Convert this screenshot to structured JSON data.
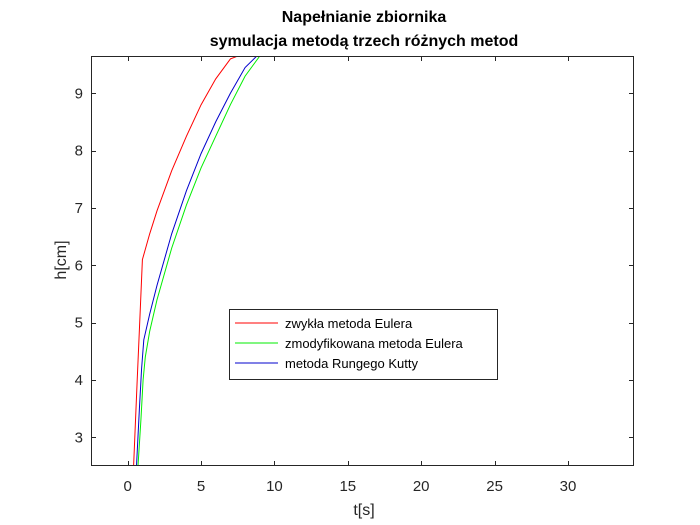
{
  "chart_data": {
    "type": "line",
    "title": [
      "Napełnianie zbiornika",
      "symulacja metodą trzech różnych metod"
    ],
    "xlabel": "t[s]",
    "ylabel": "h[cm]",
    "xlim": [
      -2.5,
      34.5
    ],
    "ylim": [
      2.5,
      9.65
    ],
    "xticks": [
      0,
      5,
      10,
      15,
      20,
      25,
      30
    ],
    "yticks": [
      3,
      4,
      5,
      6,
      7,
      8,
      9
    ],
    "grid": false,
    "legend_position": "center",
    "series": [
      {
        "name": "zwykła metoda Eulera",
        "color": "#ff0000",
        "x": [
          0.4,
          0.65,
          0.85,
          1.0,
          1.5,
          2.0,
          3.0,
          4.0,
          5.0,
          6.0,
          7.0,
          7.5
        ],
        "y": [
          2.5,
          4.0,
          5.2,
          6.1,
          6.55,
          6.95,
          7.65,
          8.25,
          8.8,
          9.25,
          9.6,
          9.65
        ]
      },
      {
        "name": "zmodyfikowana metoda Eulera",
        "color": "#00ee00",
        "x": [
          0.7,
          0.9,
          1.05,
          1.2,
          1.5,
          2.0,
          3.0,
          4.0,
          5.0,
          6.0,
          7.0,
          8.0,
          9.0
        ],
        "y": [
          2.5,
          3.3,
          4.0,
          4.4,
          4.85,
          5.4,
          6.3,
          7.05,
          7.7,
          8.25,
          8.8,
          9.3,
          9.65
        ]
      },
      {
        "name": "metoda Rungego Kutty",
        "color": "#0000cc",
        "x": [
          0.6,
          0.8,
          0.95,
          1.1,
          1.5,
          2.0,
          3.0,
          4.0,
          5.0,
          6.0,
          7.0,
          8.0,
          8.8
        ],
        "y": [
          2.5,
          3.5,
          4.2,
          4.7,
          5.15,
          5.65,
          6.55,
          7.3,
          7.95,
          8.5,
          9.0,
          9.45,
          9.65
        ]
      }
    ]
  }
}
